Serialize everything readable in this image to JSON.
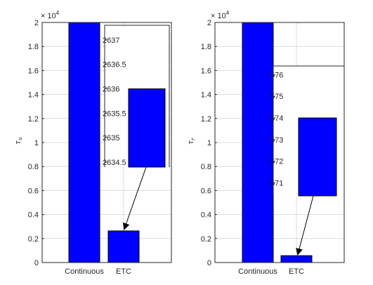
{
  "chart_data": [
    {
      "type": "bar",
      "categories": [
        "Continuous",
        "ETC"
      ],
      "values": [
        20000,
        2636
      ],
      "ylabel": "τ",
      "ylabel_sub": "u",
      "ylim": [
        0,
        20000
      ],
      "yticks": [
        "0",
        "0.2",
        "0.4",
        "0.6",
        "0.8",
        "1",
        "1.2",
        "1.4",
        "1.6",
        "1.8",
        "2"
      ],
      "y_exponent_base": "× 10",
      "y_exponent_power": "4",
      "grid": true,
      "colors": {
        "bar": "#0000ff",
        "edge": "#000000"
      },
      "inset": {
        "target_category": "ETC",
        "value": 2636,
        "ylim": [
          2634.4,
          2637.3
        ],
        "yticks": [
          "2634.5",
          "2635",
          "2635.5",
          "2636",
          "2636.5",
          "2637"
        ],
        "yticks_values": [
          2634.5,
          2635,
          2635.5,
          2636,
          2636.5,
          2637
        ]
      }
    },
    {
      "type": "bar",
      "categories": [
        "Continuous",
        "ETC"
      ],
      "values": [
        20000,
        574
      ],
      "ylabel": "τ",
      "ylabel_sub": "r",
      "ylim": [
        0,
        20000
      ],
      "yticks": [
        "0",
        "0.2",
        "0.4",
        "0.6",
        "0.8",
        "1",
        "1.2",
        "1.4",
        "1.6",
        "1.8",
        "2"
      ],
      "y_exponent_base": "× 10",
      "y_exponent_power": "4",
      "grid": true,
      "colors": {
        "bar": "#0000ff",
        "edge": "#000000"
      },
      "inset": {
        "target_category": "ETC",
        "value": 574,
        "ylim": [
          570.4,
          576.4
        ],
        "yticks": [
          "571",
          "572",
          "573",
          "574",
          "575",
          "576"
        ],
        "yticks_values": [
          571,
          572,
          573,
          574,
          575,
          576
        ]
      }
    }
  ]
}
